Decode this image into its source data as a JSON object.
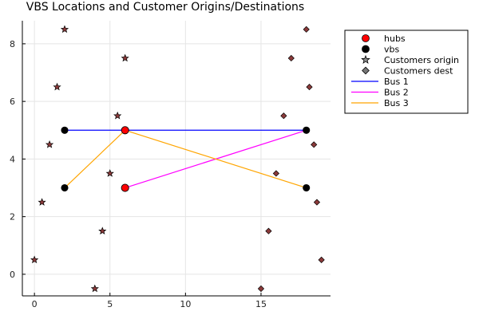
{
  "chart_data": {
    "type": "scatter",
    "title": "VBS Locations and Customer Origins/Destinations",
    "xlabel": "",
    "ylabel": "",
    "xlim": [
      -0.8,
      19.6
    ],
    "ylim": [
      -0.75,
      8.8
    ],
    "xticks": [
      0,
      5,
      10,
      15
    ],
    "yticks": [
      0,
      2,
      4,
      6,
      8
    ],
    "grid": true,
    "legend_position": "top-right",
    "colors": {
      "hubs": "#ff0000",
      "vbs": "#000000",
      "origin": "#8c8c8c",
      "dest": "#777777",
      "bus1": "#0000ff",
      "bus2": "#ff00ff",
      "bus3": "#ffa500",
      "marker_edge": "#000000",
      "star_fill_dark": "#8b3a3a",
      "grid": "#e5e5e5",
      "axis": "#000000"
    },
    "series": [
      {
        "name": "hubs",
        "marker": "circle",
        "points": [
          [
            6,
            5
          ],
          [
            6,
            3
          ]
        ]
      },
      {
        "name": "vbs",
        "marker": "circle",
        "points": [
          [
            2,
            5
          ],
          [
            2,
            3
          ],
          [
            18,
            5
          ],
          [
            18,
            3
          ]
        ]
      },
      {
        "name": "Customers origin",
        "marker": "star",
        "points": [
          [
            2,
            8.5
          ],
          [
            6,
            7.5
          ],
          [
            1.5,
            6.5
          ],
          [
            5.5,
            5.5
          ],
          [
            1,
            4.5
          ],
          [
            5,
            3.5
          ],
          [
            0.5,
            2.5
          ],
          [
            4.5,
            1.5
          ],
          [
            0,
            0.5
          ],
          [
            4,
            -0.5
          ]
        ]
      },
      {
        "name": "Customers dest",
        "marker": "diamond",
        "points": [
          [
            18,
            8.5
          ],
          [
            17,
            7.5
          ],
          [
            18.2,
            6.5
          ],
          [
            16.5,
            5.5
          ],
          [
            18.5,
            4.5
          ],
          [
            16,
            3.5
          ],
          [
            18.7,
            2.5
          ],
          [
            15.5,
            1.5
          ],
          [
            19,
            0.5
          ],
          [
            15,
            -0.5
          ]
        ]
      },
      {
        "name": "Bus 1",
        "type": "line",
        "points": [
          [
            2,
            5
          ],
          [
            6,
            5
          ],
          [
            18,
            5
          ]
        ]
      },
      {
        "name": "Bus 2",
        "type": "line",
        "points": [
          [
            6,
            3
          ],
          [
            18,
            5
          ]
        ]
      },
      {
        "name": "Bus 3",
        "type": "line",
        "points": [
          [
            2,
            3
          ],
          [
            6,
            5
          ],
          [
            18,
            3
          ]
        ]
      }
    ],
    "legend": [
      {
        "label": "hubs",
        "kind": "circle",
        "color_key": "hubs"
      },
      {
        "label": "vbs",
        "kind": "circle",
        "color_key": "vbs"
      },
      {
        "label": "Customers origin",
        "kind": "star",
        "color_key": "origin"
      },
      {
        "label": "Customers dest",
        "kind": "diamond",
        "color_key": "dest"
      },
      {
        "label": "Bus 1",
        "kind": "line",
        "color_key": "bus1"
      },
      {
        "label": "Bus 2",
        "kind": "line",
        "color_key": "bus2"
      },
      {
        "label": "Bus 3",
        "kind": "line",
        "color_key": "bus3"
      }
    ]
  }
}
